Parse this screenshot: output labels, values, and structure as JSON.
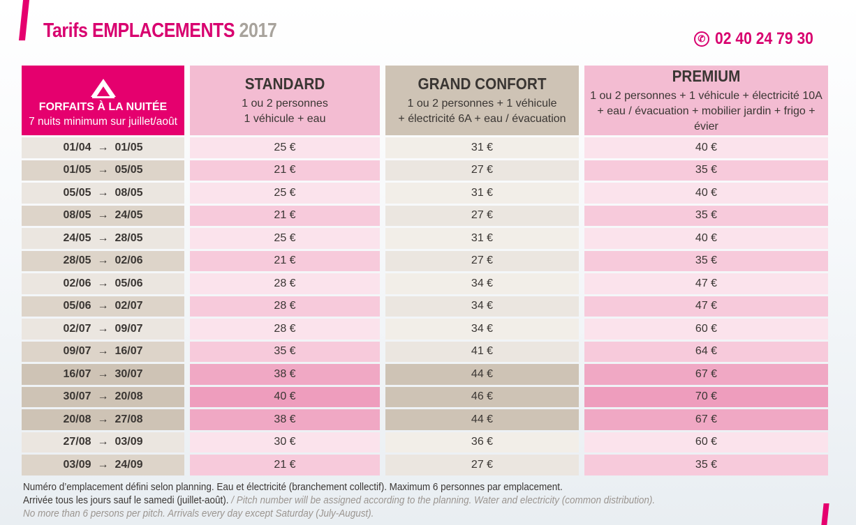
{
  "header": {
    "title_main": "Tarifs EMPLACEMENTS",
    "title_year": "2017",
    "phone": "02 40 24 79 30"
  },
  "table": {
    "forfait_title": "FORFAITS À LA NUITÉE",
    "forfait_note": "7 nuits minimum sur juillet/août",
    "columns": [
      {
        "name": "STANDARD",
        "desc1": "1 ou 2 personnes",
        "desc2": "1 véhicule + eau"
      },
      {
        "name": "GRAND CONFORT",
        "desc1": "1 ou 2 personnes + 1 véhicule",
        "desc2": "+ électricité 6A + eau / évacuation"
      },
      {
        "name": "PREMIUM",
        "desc1": "1 ou 2 personnes + 1 véhicule + électricité 10A",
        "desc2": "+ eau / évacuation + mobilier jardin + frigo + évier"
      }
    ],
    "rows": [
      {
        "from": "01/04",
        "to": "01/05",
        "standard": "25 €",
        "grand": "31 €",
        "premium": "40 €"
      },
      {
        "from": "01/05",
        "to": "05/05",
        "standard": "21 €",
        "grand": "27 €",
        "premium": "35 €"
      },
      {
        "from": "05/05",
        "to": "08/05",
        "standard": "25 €",
        "grand": "31 €",
        "premium": "40 €"
      },
      {
        "from": "08/05",
        "to": "24/05",
        "standard": "21 €",
        "grand": "27 €",
        "premium": "35 €"
      },
      {
        "from": "24/05",
        "to": "28/05",
        "standard": "25 €",
        "grand": "31 €",
        "premium": "40 €"
      },
      {
        "from": "28/05",
        "to": "02/06",
        "standard": "21 €",
        "grand": "27 €",
        "premium": "35 €"
      },
      {
        "from": "02/06",
        "to": "05/06",
        "standard": "28 €",
        "grand": "34 €",
        "premium": "47 €"
      },
      {
        "from": "05/06",
        "to": "02/07",
        "standard": "28 €",
        "grand": "34 €",
        "premium": "47 €"
      },
      {
        "from": "02/07",
        "to": "09/07",
        "standard": "28 €",
        "grand": "34 €",
        "premium": "60 €"
      },
      {
        "from": "09/07",
        "to": "16/07",
        "standard": "35 €",
        "grand": "41 €",
        "premium": "64 €"
      },
      {
        "from": "16/07",
        "to": "30/07",
        "standard": "38 €",
        "grand": "44 €",
        "premium": "67 €"
      },
      {
        "from": "30/07",
        "to": "20/08",
        "standard": "40 €",
        "grand": "46 €",
        "premium": "70 €"
      },
      {
        "from": "20/08",
        "to": "27/08",
        "standard": "38 €",
        "grand": "44 €",
        "premium": "67 €"
      },
      {
        "from": "27/08",
        "to": "03/09",
        "standard": "30 €",
        "grand": "36 €",
        "premium": "60 €"
      },
      {
        "from": "03/09",
        "to": "24/09",
        "standard": "21 €",
        "grand": "27 €",
        "premium": "35 €"
      }
    ]
  },
  "footer": {
    "line1": "Numéro d’emplacement défini selon planning. Eau et électricité (branchement collectif). Maximum 6 personnes par emplacement.",
    "line2_fr": "Arrivée tous les jours sauf le samedi (juillet-août). ",
    "line2_en": "/ Pitch number will be assigned according to the planning. Water and electricity (common distribution).",
    "line3_en": "No more than 6 persons per pitch. Arrivals every day except Saturday (July-August)."
  },
  "colors": {
    "brand_magenta": "#e5006e",
    "pink_header": "#f3bcd2",
    "beige_header": "#cec3b5",
    "peak_pink": "#f0a8c4"
  },
  "icons": {
    "tent": "tent-icon",
    "phone": "phone-icon",
    "arrow": "right-arrow-icon"
  }
}
